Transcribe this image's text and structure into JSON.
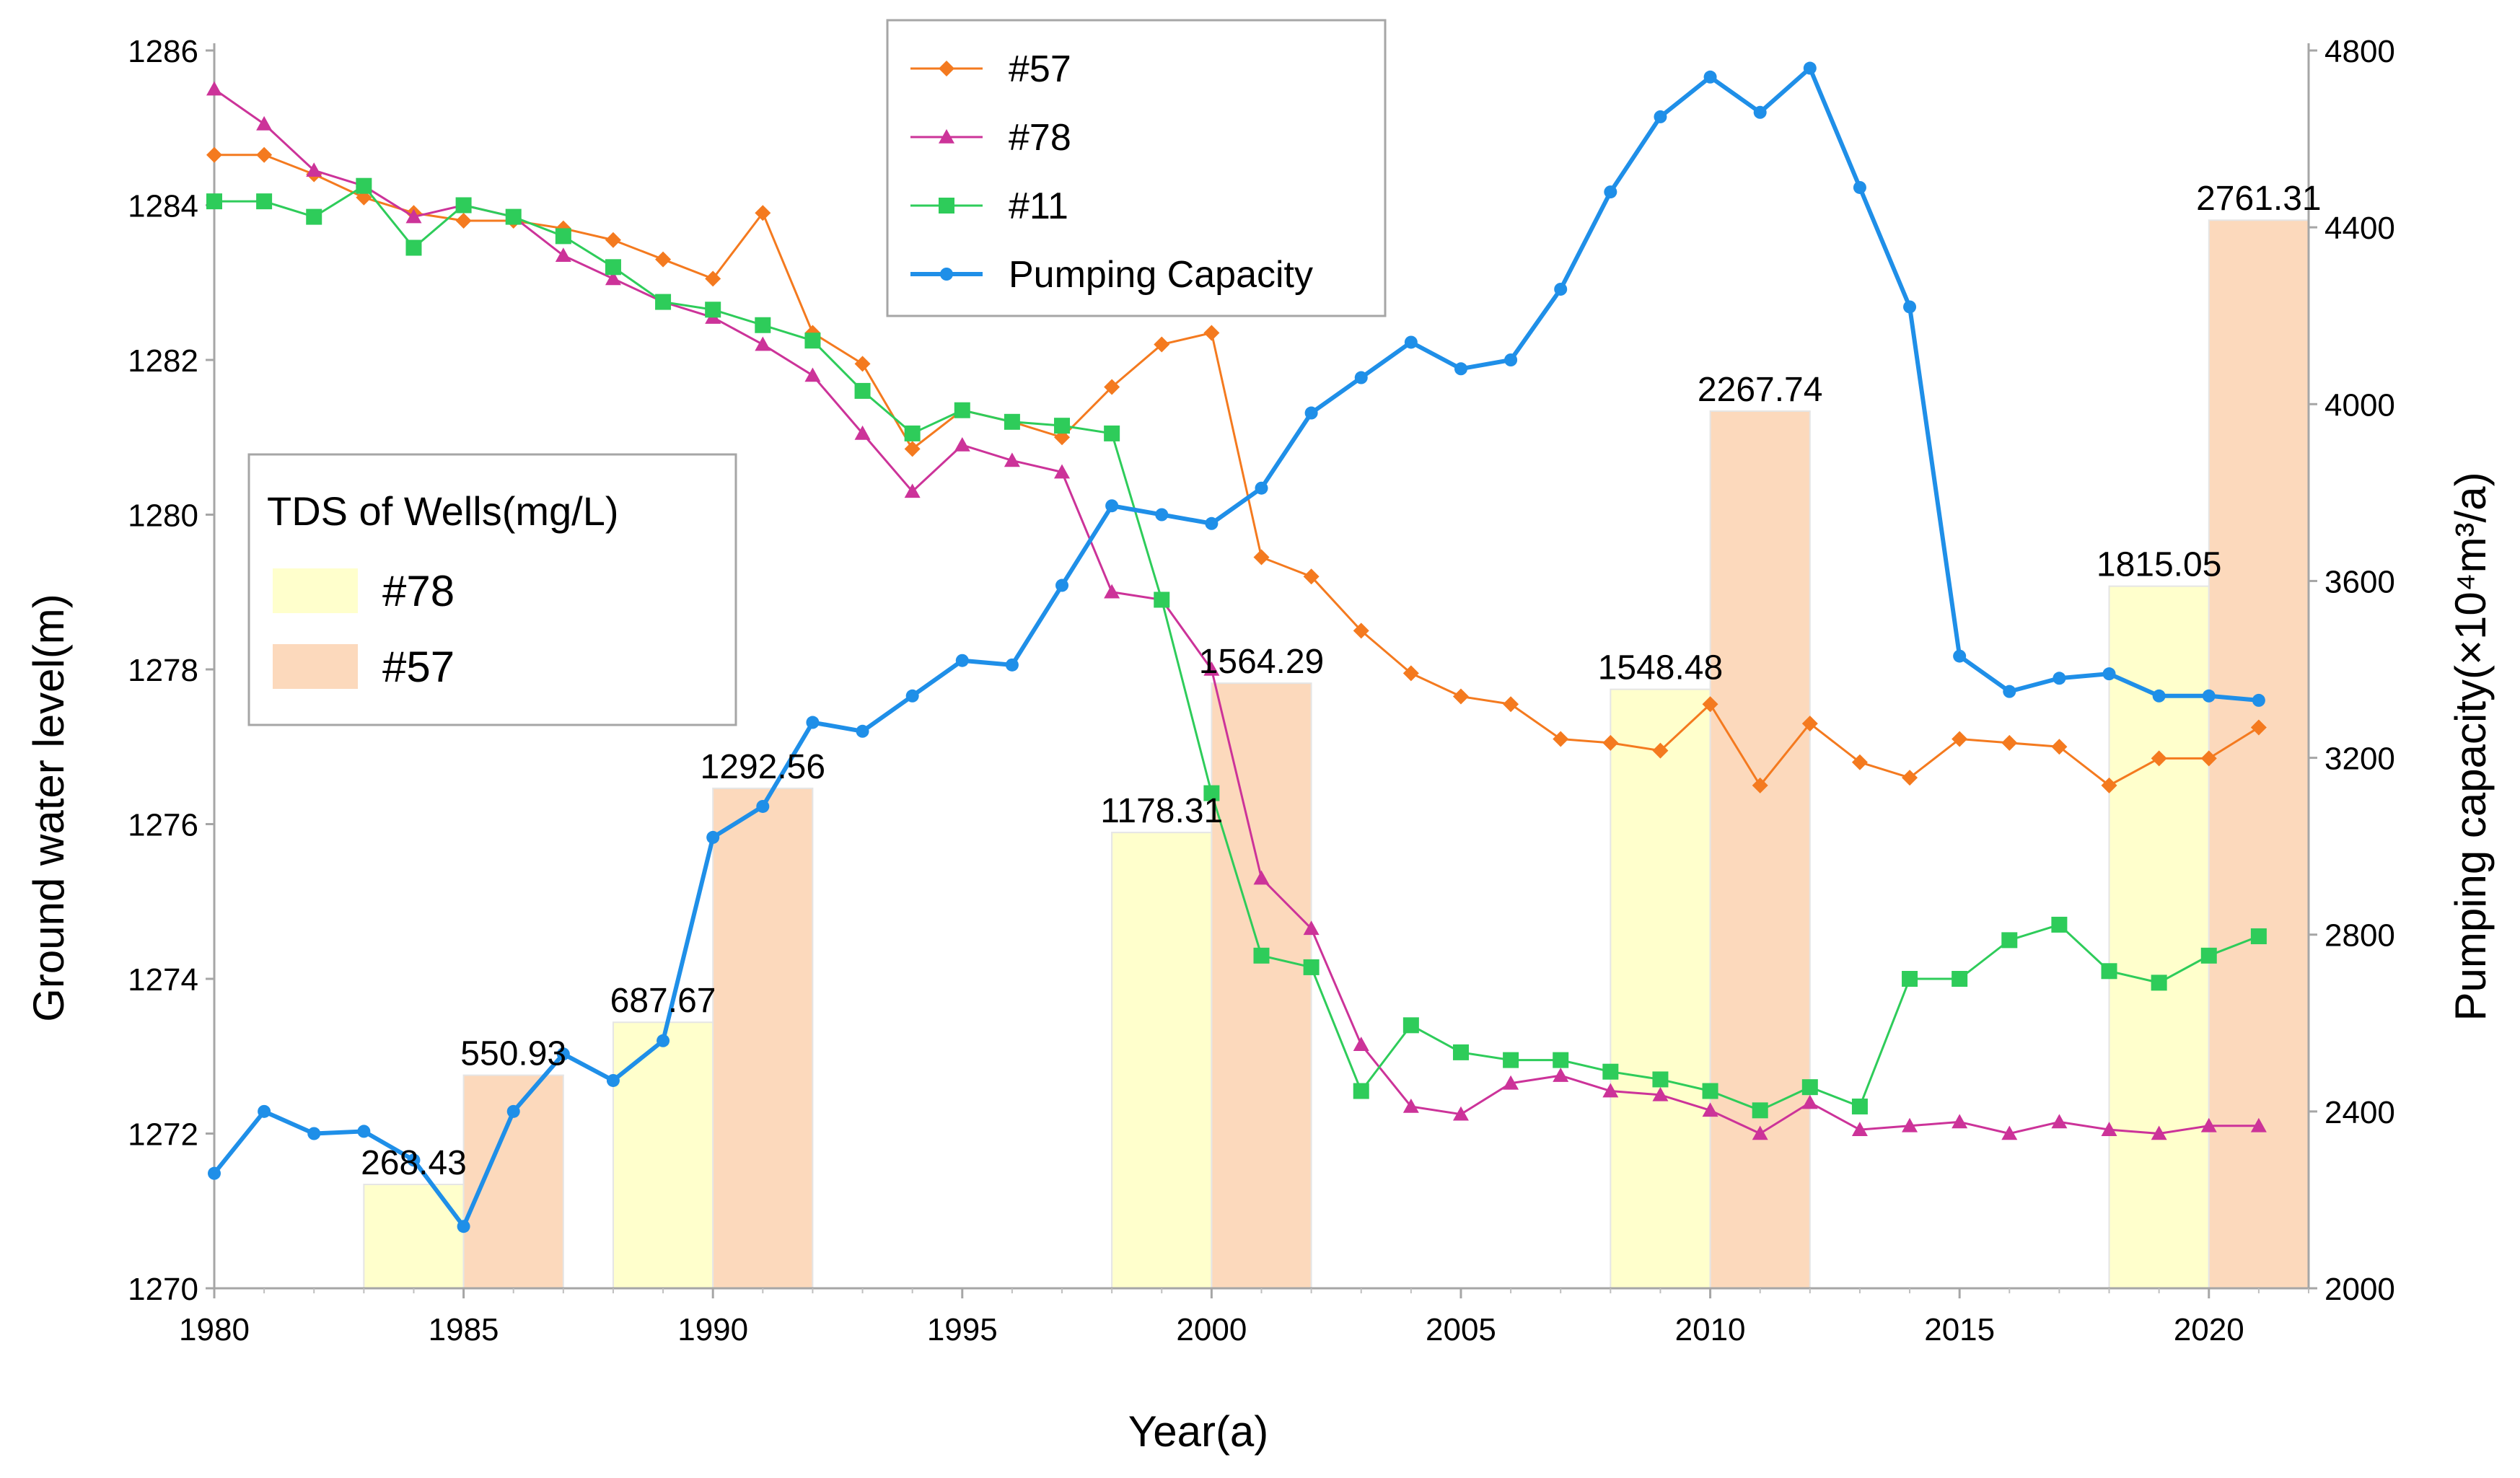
{
  "chart_data": {
    "type": "combo-bar-line",
    "xlabel": "Year(a)",
    "ylabel_left": "Ground water level(m)",
    "ylabel_right": "Pumping capacity(×10⁴m³/a)",
    "x_range": [
      1980,
      2022
    ],
    "x_ticks": [
      1980,
      1985,
      1990,
      1995,
      2000,
      2005,
      2010,
      2015,
      2020
    ],
    "left_axis_range": [
      1270,
      1286
    ],
    "left_ticks": [
      1270,
      1272,
      1274,
      1276,
      1278,
      1280,
      1282,
      1284,
      1286
    ],
    "right_axis_range": [
      2000,
      4800
    ],
    "right_ticks": [
      2000,
      2400,
      2800,
      3200,
      3600,
      4000,
      4400,
      4800
    ],
    "grid": false,
    "line_series": [
      {
        "name": "#57",
        "color": "#f47a1f",
        "marker": "diamond",
        "axis": "left",
        "points": [
          [
            1980,
            1284.65
          ],
          [
            1981,
            1284.65
          ],
          [
            1982,
            1284.4
          ],
          [
            1983,
            1284.1
          ],
          [
            1984,
            1283.9
          ],
          [
            1985,
            1283.8
          ],
          [
            1986,
            1283.8
          ],
          [
            1987,
            1283.7
          ],
          [
            1988,
            1283.55
          ],
          [
            1989,
            1283.3
          ],
          [
            1990,
            1283.05
          ],
          [
            1991,
            1283.9
          ],
          [
            1992,
            1282.35
          ],
          [
            1993,
            1281.95
          ],
          [
            1994,
            1280.85
          ],
          [
            1995,
            1281.35
          ],
          [
            1996,
            1281.2
          ],
          [
            1997,
            1281.0
          ],
          [
            1998,
            1281.65
          ],
          [
            1999,
            1282.2
          ],
          [
            2000,
            1282.35
          ],
          [
            2001,
            1279.45
          ],
          [
            2002,
            1279.2
          ],
          [
            2003,
            1278.5
          ],
          [
            2004,
            1277.95
          ],
          [
            2005,
            1277.65
          ],
          [
            2006,
            1277.55
          ],
          [
            2007,
            1277.1
          ],
          [
            2008,
            1277.05
          ],
          [
            2009,
            1276.95
          ],
          [
            2010,
            1277.55
          ],
          [
            2011,
            1276.5
          ],
          [
            2012,
            1277.3
          ],
          [
            2013,
            1276.8
          ],
          [
            2014,
            1276.6
          ],
          [
            2015,
            1277.1
          ],
          [
            2016,
            1277.05
          ],
          [
            2017,
            1277.0
          ],
          [
            2018,
            1276.5
          ],
          [
            2019,
            1276.85
          ],
          [
            2020,
            1276.85
          ],
          [
            2021,
            1277.25
          ]
        ]
      },
      {
        "name": "#78",
        "color": "#cc3399",
        "marker": "triangle",
        "axis": "left",
        "points": [
          [
            1980,
            1285.5
          ],
          [
            1981,
            1285.05
          ],
          [
            1982,
            1284.45
          ],
          [
            1983,
            1284.25
          ],
          [
            1984,
            1283.85
          ],
          [
            1985,
            1284.0
          ],
          [
            1986,
            1283.85
          ],
          [
            1987,
            1283.35
          ],
          [
            1988,
            1283.05
          ],
          [
            1989,
            1282.75
          ],
          [
            1990,
            1282.55
          ],
          [
            1991,
            1282.2
          ],
          [
            1992,
            1281.8
          ],
          [
            1993,
            1281.05
          ],
          [
            1994,
            1280.3
          ],
          [
            1995,
            1280.9
          ],
          [
            1996,
            1280.7
          ],
          [
            1997,
            1280.55
          ],
          [
            1998,
            1279.0
          ],
          [
            1999,
            1278.9
          ],
          [
            2000,
            1278.0
          ],
          [
            2001,
            1275.3
          ],
          [
            2002,
            1274.65
          ],
          [
            2003,
            1273.15
          ],
          [
            2004,
            1272.35
          ],
          [
            2005,
            1272.25
          ],
          [
            2006,
            1272.65
          ],
          [
            2007,
            1272.75
          ],
          [
            2008,
            1272.55
          ],
          [
            2009,
            1272.5
          ],
          [
            2010,
            1272.3
          ],
          [
            2011,
            1272.0
          ],
          [
            2012,
            1272.4
          ],
          [
            2013,
            1272.05
          ],
          [
            2014,
            1272.1
          ],
          [
            2015,
            1272.15
          ],
          [
            2016,
            1272.0
          ],
          [
            2017,
            1272.15
          ],
          [
            2018,
            1272.05
          ],
          [
            2019,
            1272.0
          ],
          [
            2020,
            1272.1
          ],
          [
            2021,
            1272.1
          ]
        ]
      },
      {
        "name": "#11",
        "color": "#2ecc5a",
        "marker": "square",
        "axis": "left",
        "points": [
          [
            1980,
            1284.05
          ],
          [
            1981,
            1284.05
          ],
          [
            1982,
            1283.85
          ],
          [
            1983,
            1284.25
          ],
          [
            1984,
            1283.45
          ],
          [
            1985,
            1284.0
          ],
          [
            1986,
            1283.85
          ],
          [
            1987,
            1283.6
          ],
          [
            1988,
            1283.2
          ],
          [
            1989,
            1282.75
          ],
          [
            1990,
            1282.65
          ],
          [
            1991,
            1282.45
          ],
          [
            1992,
            1282.25
          ],
          [
            1993,
            1281.6
          ],
          [
            1994,
            1281.05
          ],
          [
            1995,
            1281.35
          ],
          [
            1996,
            1281.2
          ],
          [
            1997,
            1281.15
          ],
          [
            1998,
            1281.05
          ],
          [
            1999,
            1278.9
          ],
          [
            2000,
            1276.4
          ],
          [
            2001,
            1274.3
          ],
          [
            2002,
            1274.15
          ],
          [
            2003,
            1272.55
          ],
          [
            2004,
            1273.4
          ],
          [
            2005,
            1273.05
          ],
          [
            2006,
            1272.95
          ],
          [
            2007,
            1272.95
          ],
          [
            2008,
            1272.8
          ],
          [
            2009,
            1272.7
          ],
          [
            2010,
            1272.55
          ],
          [
            2011,
            1272.3
          ],
          [
            2012,
            1272.6
          ],
          [
            2013,
            1272.35
          ],
          [
            2014,
            1274.0
          ],
          [
            2015,
            1274.0
          ],
          [
            2016,
            1274.5
          ],
          [
            2017,
            1274.7
          ],
          [
            2018,
            1274.1
          ],
          [
            2019,
            1273.95
          ],
          [
            2020,
            1274.3
          ],
          [
            2021,
            1274.55
          ]
        ]
      },
      {
        "name": "Pumping Capacity",
        "color": "#1f8fe8",
        "marker": "circle",
        "axis": "right",
        "points": [
          [
            1980,
            2260
          ],
          [
            1981,
            2400
          ],
          [
            1982,
            2350
          ],
          [
            1983,
            2355
          ],
          [
            1984,
            2290
          ],
          [
            1985,
            2140
          ],
          [
            1986,
            2400
          ],
          [
            1987,
            2530
          ],
          [
            1988,
            2470
          ],
          [
            1989,
            2560
          ],
          [
            1990,
            3020
          ],
          [
            1991,
            3090
          ],
          [
            1992,
            3280
          ],
          [
            1993,
            3260
          ],
          [
            1994,
            3340
          ],
          [
            1995,
            3420
          ],
          [
            1996,
            3410
          ],
          [
            1997,
            3590
          ],
          [
            1998,
            3770
          ],
          [
            1999,
            3750
          ],
          [
            2000,
            3730
          ],
          [
            2001,
            3810
          ],
          [
            2002,
            3980
          ],
          [
            2003,
            4060
          ],
          [
            2004,
            4140
          ],
          [
            2005,
            4080
          ],
          [
            2006,
            4100
          ],
          [
            2007,
            4260
          ],
          [
            2008,
            4480
          ],
          [
            2009,
            4650
          ],
          [
            2010,
            4740
          ],
          [
            2011,
            4660
          ],
          [
            2012,
            4760
          ],
          [
            2013,
            4490
          ],
          [
            2014,
            4220
          ],
          [
            2015,
            3430
          ],
          [
            2016,
            3350
          ],
          [
            2017,
            3380
          ],
          [
            2018,
            3390
          ],
          [
            2019,
            3340
          ],
          [
            2020,
            3340
          ],
          [
            2021,
            3330
          ]
        ]
      }
    ],
    "bar_series": [
      {
        "name": "#78",
        "color": "#ffffcc",
        "label_color": "#000000",
        "bars": [
          {
            "start": 1983,
            "end": 1985,
            "value": 268.43,
            "label": "268.43"
          },
          {
            "start": 1988,
            "end": 1990,
            "value": 687.67,
            "label": "687.67"
          },
          {
            "start": 1998,
            "end": 2000,
            "value": 1178.31,
            "label": "1178.31"
          },
          {
            "start": 2008,
            "end": 2010,
            "value": 1548.48,
            "label": "1548.48"
          },
          {
            "start": 2018,
            "end": 2020,
            "value": 1815.05,
            "label": "1815.05"
          }
        ]
      },
      {
        "name": "#57",
        "color": "#fcd9bc",
        "label_color": "#000000",
        "bars": [
          {
            "start": 1985,
            "end": 1987,
            "value": 550.93,
            "label": "550.93"
          },
          {
            "start": 1990,
            "end": 1992,
            "value": 1292.56,
            "label": "1292.56"
          },
          {
            "start": 2000,
            "end": 2002,
            "value": 1564.29,
            "label": "1564.29"
          },
          {
            "start": 2010,
            "end": 2012,
            "value": 2267.74,
            "label": "2267.74"
          },
          {
            "start": 2020,
            "end": 2022,
            "value": 2761.31,
            "label": "2761.31"
          }
        ]
      }
    ],
    "bar_axis_range": [
      0,
      3200
    ],
    "legend_top": {
      "position": "top-center",
      "items": [
        "#57",
        "#78",
        "#11",
        "Pumping Capacity"
      ]
    },
    "legend_bars": {
      "position": "left-middle",
      "title": "TDS of Wells(mg/L)",
      "items": [
        "#78",
        "#57"
      ]
    }
  }
}
